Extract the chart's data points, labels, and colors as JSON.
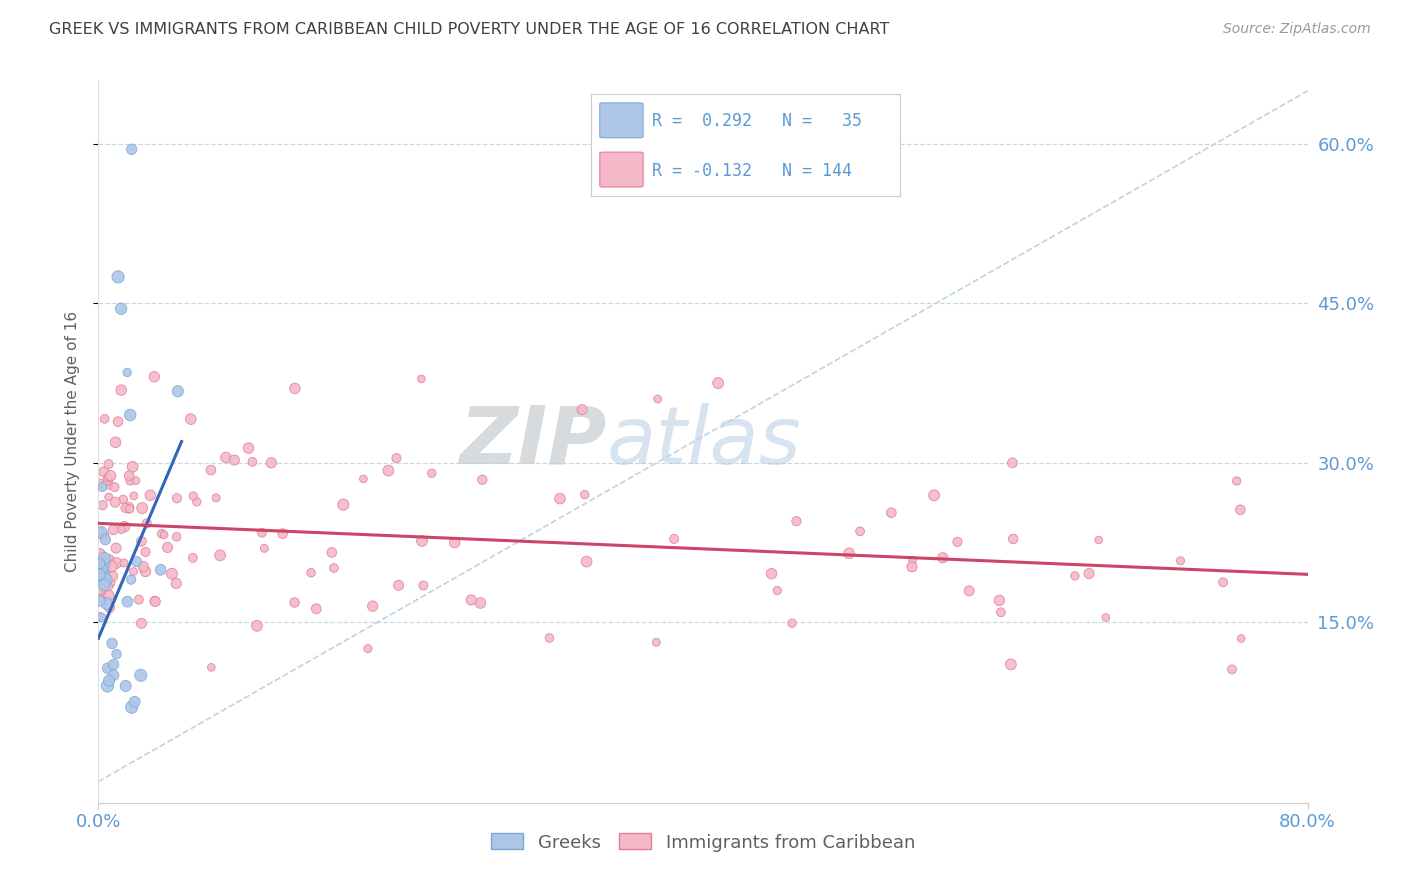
{
  "title": "GREEK VS IMMIGRANTS FROM CARIBBEAN CHILD POVERTY UNDER THE AGE OF 16 CORRELATION CHART",
  "source": "Source: ZipAtlas.com",
  "ylabel": "Child Poverty Under the Age of 16",
  "yticks_labels": [
    "60.0%",
    "45.0%",
    "30.0%",
    "15.0%"
  ],
  "ytick_vals": [
    0.6,
    0.45,
    0.3,
    0.15
  ],
  "xlim": [
    0.0,
    0.8
  ],
  "ylim": [
    -0.02,
    0.66
  ],
  "legend_greek_R": "0.292",
  "legend_greek_N": "35",
  "legend_carib_R": "-0.132",
  "legend_carib_N": "144",
  "greek_color": "#aec6e8",
  "greek_edge_color": "#7aaad4",
  "carib_color": "#f4b8c8",
  "carib_edge_color": "#e08098",
  "trend_greek_color": "#3366bb",
  "trend_carib_color": "#cc4466",
  "diagonal_color": "#c0d4e0",
  "background_color": "#ffffff",
  "grid_color": "#c8d8e4",
  "title_color": "#404040",
  "axis_label_color": "#5b9bd5",
  "tick_color": "#5b9bd5",
  "ylabel_color": "#606060",
  "source_color": "#999999",
  "watermark_zip_color": "#c8ccd0",
  "watermark_atlas_color": "#b0c8e0",
  "greek_trend_x0": 0.0,
  "greek_trend_y0": 0.135,
  "greek_trend_x1": 0.055,
  "greek_trend_y1": 0.32,
  "carib_trend_x0": 0.0,
  "carib_trend_y0": 0.243,
  "carib_trend_x1": 0.8,
  "carib_trend_y1": 0.195
}
